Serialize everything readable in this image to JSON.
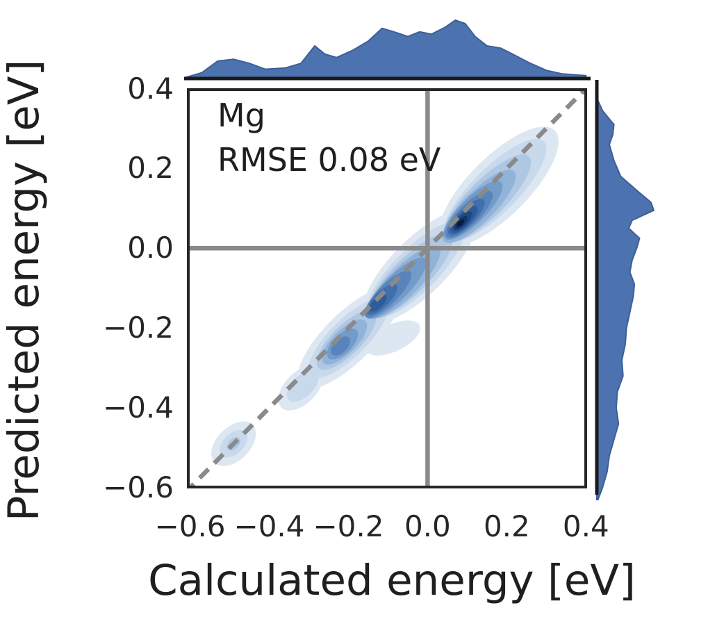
{
  "chart_data": {
    "type": "kde_joint",
    "xlabel": "Calculated energy [eV]",
    "ylabel": "Predicted energy [eV]",
    "annotation": {
      "element": "Mg",
      "rmse_text": "RMSE 0.08 eV",
      "rmse_value_eV": 0.08
    },
    "x_range": [
      -0.608,
      0.403
    ],
    "y_range": [
      -0.602,
      0.401
    ],
    "xticks": [
      -0.6,
      -0.4,
      -0.2,
      0.0,
      0.2,
      0.4
    ],
    "xtick_labels": [
      "−0.6",
      "−0.4",
      "−0.2",
      "0.0",
      "0.2",
      "0.4"
    ],
    "yticks": [
      0.4,
      0.2,
      0.0,
      -0.2,
      -0.4,
      -0.6
    ],
    "ytick_labels": [
      "0.4",
      "0.2",
      "0.0",
      "−0.2",
      "−0.4",
      "−0.6"
    ],
    "grid": false,
    "legend": null,
    "colors": {
      "marginal_fill": "#4c72b0",
      "marginal_edge": "#3d5f96",
      "refline": "#8a8a8a",
      "identity_line": "#8a8a8a",
      "spine": "#262626",
      "marginal_spine": "#1a1a1a",
      "text": "#1f1f1f"
    },
    "ref_lines": {
      "horizontal_y": 0.0,
      "vertical_x": 0.0
    },
    "identity_line": {
      "style": "dashed",
      "from": [
        -0.65,
        -0.65
      ],
      "to": [
        0.45,
        0.45
      ]
    },
    "density_peak": {
      "x": 0.08,
      "y": 0.06
    },
    "contour_colors": [
      "#dde7f2",
      "#c9d9ec",
      "#aec7e3",
      "#91b3d8",
      "#739bca",
      "#5884bc",
      "#416fac",
      "#2e5b9a",
      "#1e4784",
      "#133568",
      "#081e40"
    ],
    "contours": [
      {
        "level": 0,
        "ellipses": [
          [
            0.18,
            0.155,
            0.2,
            0.075,
            45
          ],
          [
            0.285,
            0.245,
            0.05,
            0.038,
            45
          ],
          [
            -0.02,
            -0.045,
            0.19,
            0.07,
            45
          ],
          [
            -0.2,
            -0.225,
            0.17,
            0.062,
            45
          ],
          [
            -0.32,
            -0.35,
            0.07,
            0.04,
            45
          ],
          [
            -0.088,
            -0.225,
            0.075,
            0.034,
            25
          ],
          [
            -0.49,
            -0.49,
            0.068,
            0.042,
            45
          ]
        ]
      },
      {
        "level": 1,
        "ellipses": [
          [
            0.17,
            0.145,
            0.175,
            0.057,
            45
          ],
          [
            -0.03,
            -0.055,
            0.165,
            0.055,
            45
          ],
          [
            -0.2,
            -0.225,
            0.135,
            0.047,
            45
          ],
          [
            -0.315,
            -0.345,
            0.05,
            0.027,
            45
          ],
          [
            -0.49,
            -0.49,
            0.042,
            0.026,
            45
          ]
        ]
      },
      {
        "level": 2,
        "ellipses": [
          [
            0.15,
            0.125,
            0.15,
            0.047,
            45
          ],
          [
            -0.045,
            -0.07,
            0.145,
            0.045,
            45
          ],
          [
            -0.205,
            -0.23,
            0.1,
            0.037,
            45
          ],
          [
            -0.49,
            -0.49,
            0.02,
            0.013,
            45
          ]
        ]
      },
      {
        "level": 3,
        "ellipses": [
          [
            0.13,
            0.105,
            0.125,
            0.039,
            45
          ],
          [
            -0.06,
            -0.085,
            0.125,
            0.038,
            45
          ],
          [
            -0.21,
            -0.235,
            0.075,
            0.03,
            45
          ]
        ]
      },
      {
        "level": 4,
        "ellipses": [
          [
            0.115,
            0.095,
            0.1,
            0.032,
            45
          ],
          [
            -0.08,
            -0.1,
            0.105,
            0.031,
            45
          ],
          [
            -0.215,
            -0.24,
            0.05,
            0.024,
            45
          ]
        ]
      },
      {
        "level": 5,
        "ellipses": [
          [
            0.105,
            0.085,
            0.08,
            0.026,
            45
          ],
          [
            -0.1,
            -0.115,
            0.08,
            0.025,
            45
          ],
          [
            -0.22,
            -0.245,
            0.03,
            0.017,
            45
          ]
        ]
      },
      {
        "level": 6,
        "ellipses": [
          [
            0.098,
            0.078,
            0.062,
            0.021,
            45
          ],
          [
            -0.115,
            -0.128,
            0.052,
            0.019,
            45
          ]
        ]
      },
      {
        "level": 7,
        "ellipses": [
          [
            0.092,
            0.072,
            0.046,
            0.017,
            45
          ],
          [
            -0.125,
            -0.137,
            0.028,
            0.013,
            45
          ]
        ]
      },
      {
        "level": 8,
        "ellipses": [
          [
            0.088,
            0.068,
            0.032,
            0.013,
            45
          ]
        ]
      },
      {
        "level": 9,
        "ellipses": [
          [
            0.085,
            0.065,
            0.021,
            0.009,
            45
          ]
        ]
      },
      {
        "level": 10,
        "ellipses": [
          [
            0.083,
            0.063,
            0.012,
            0.006,
            45
          ]
        ]
      }
    ],
    "marginal_top": {
      "axis": "x",
      "profile": [
        [
          -0.61,
          0.02
        ],
        [
          -0.57,
          0.1
        ],
        [
          -0.53,
          0.3
        ],
        [
          -0.49,
          0.33
        ],
        [
          -0.45,
          0.26
        ],
        [
          -0.41,
          0.16
        ],
        [
          -0.36,
          0.18
        ],
        [
          -0.32,
          0.26
        ],
        [
          -0.285,
          0.56
        ],
        [
          -0.26,
          0.42
        ],
        [
          -0.23,
          0.36
        ],
        [
          -0.19,
          0.48
        ],
        [
          -0.15,
          0.64
        ],
        [
          -0.115,
          0.86
        ],
        [
          -0.085,
          0.8
        ],
        [
          -0.05,
          0.72
        ],
        [
          -0.02,
          0.8
        ],
        [
          0.01,
          0.76
        ],
        [
          0.045,
          0.88
        ],
        [
          0.07,
          1.0
        ],
        [
          0.095,
          0.94
        ],
        [
          0.12,
          0.72
        ],
        [
          0.15,
          0.56
        ],
        [
          0.185,
          0.52
        ],
        [
          0.22,
          0.4
        ],
        [
          0.26,
          0.26
        ],
        [
          0.3,
          0.14
        ],
        [
          0.34,
          0.08
        ],
        [
          0.38,
          0.06
        ],
        [
          0.4,
          0.05
        ]
      ]
    },
    "marginal_right": {
      "axis": "y",
      "profile": [
        [
          0.37,
          0.02
        ],
        [
          0.345,
          0.1
        ],
        [
          0.31,
          0.3
        ],
        [
          0.285,
          0.28
        ],
        [
          0.26,
          0.22
        ],
        [
          0.22,
          0.3
        ],
        [
          0.18,
          0.42
        ],
        [
          0.145,
          0.7
        ],
        [
          0.115,
          0.95
        ],
        [
          0.095,
          1.0
        ],
        [
          0.07,
          0.62
        ],
        [
          0.05,
          0.56
        ],
        [
          0.025,
          0.75
        ],
        [
          0.0,
          0.7
        ],
        [
          -0.03,
          0.62
        ],
        [
          -0.06,
          0.58
        ],
        [
          -0.09,
          0.66
        ],
        [
          -0.12,
          0.64
        ],
        [
          -0.16,
          0.58
        ],
        [
          -0.2,
          0.52
        ],
        [
          -0.24,
          0.5
        ],
        [
          -0.28,
          0.44
        ],
        [
          -0.32,
          0.46
        ],
        [
          -0.36,
          0.36
        ],
        [
          -0.4,
          0.34
        ],
        [
          -0.44,
          0.38
        ],
        [
          -0.48,
          0.3
        ],
        [
          -0.52,
          0.22
        ],
        [
          -0.56,
          0.18
        ],
        [
          -0.6,
          0.1
        ],
        [
          -0.63,
          0.02
        ]
      ]
    }
  }
}
